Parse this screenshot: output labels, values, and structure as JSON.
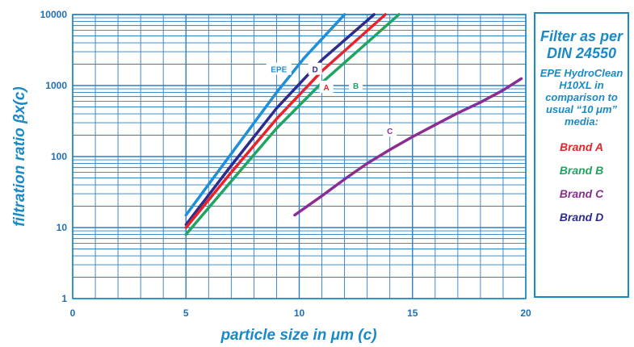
{
  "chart_data": {
    "type": "line",
    "xlabel": "particle size in μm (c)",
    "ylabel": "filtration ratio βx(c)",
    "xlim": [
      0,
      20
    ],
    "ylim": [
      1,
      10000
    ],
    "yscale": "log",
    "grid": true,
    "x_ticks": [
      "0",
      "5",
      "10",
      "15",
      "20"
    ],
    "y_ticks": [
      "1",
      "10",
      "100",
      "1000",
      "10000"
    ],
    "series": [
      {
        "name": "EPE",
        "color": "#1f8fd6",
        "x": [
          5,
          7,
          9,
          10.2,
          12.0
        ],
        "y": [
          15,
          110,
          800,
          2400,
          10000
        ]
      },
      {
        "name": "D",
        "color": "#2e2c8c",
        "x": [
          5,
          7,
          9,
          11,
          13.3
        ],
        "y": [
          11,
          75,
          480,
          2300,
          10000
        ]
      },
      {
        "name": "A",
        "color": "#e8232a",
        "x": [
          5,
          7,
          9,
          11,
          13.8
        ],
        "y": [
          10,
          60,
          340,
          1600,
          10000
        ]
      },
      {
        "name": "B",
        "color": "#20a561",
        "x": [
          5,
          7,
          9,
          11,
          14.4
        ],
        "y": [
          8,
          45,
          250,
          1100,
          10000
        ]
      },
      {
        "name": "C",
        "color": "#8b2c93",
        "x": [
          9.8,
          11,
          12,
          13,
          14,
          15,
          16,
          17,
          18,
          19,
          19.8
        ],
        "y": [
          15,
          28,
          48,
          80,
          125,
          190,
          280,
          410,
          580,
          860,
          1250
        ]
      }
    ],
    "annotations": [
      {
        "text": "EPE",
        "x": 9.1,
        "y": 1700
      },
      {
        "text": "D",
        "x": 10.7,
        "y": 1700
      },
      {
        "text": "A",
        "x": 11.2,
        "y": 950
      },
      {
        "text": "B",
        "x": 12.5,
        "y": 1000
      },
      {
        "text": "C",
        "x": 14.0,
        "y": 230
      }
    ]
  },
  "side_panel": {
    "title": "Filter as per DIN 24550",
    "description": "EPE HydroClean H10XL in comparison to usual “10 μm” media:",
    "legend": [
      {
        "label": "Brand A",
        "color": "#e8232a"
      },
      {
        "label": "Brand B",
        "color": "#20a561"
      },
      {
        "label": "Brand C",
        "color": "#8b2c93"
      },
      {
        "label": "Brand D",
        "color": "#2e2c8c"
      }
    ]
  }
}
